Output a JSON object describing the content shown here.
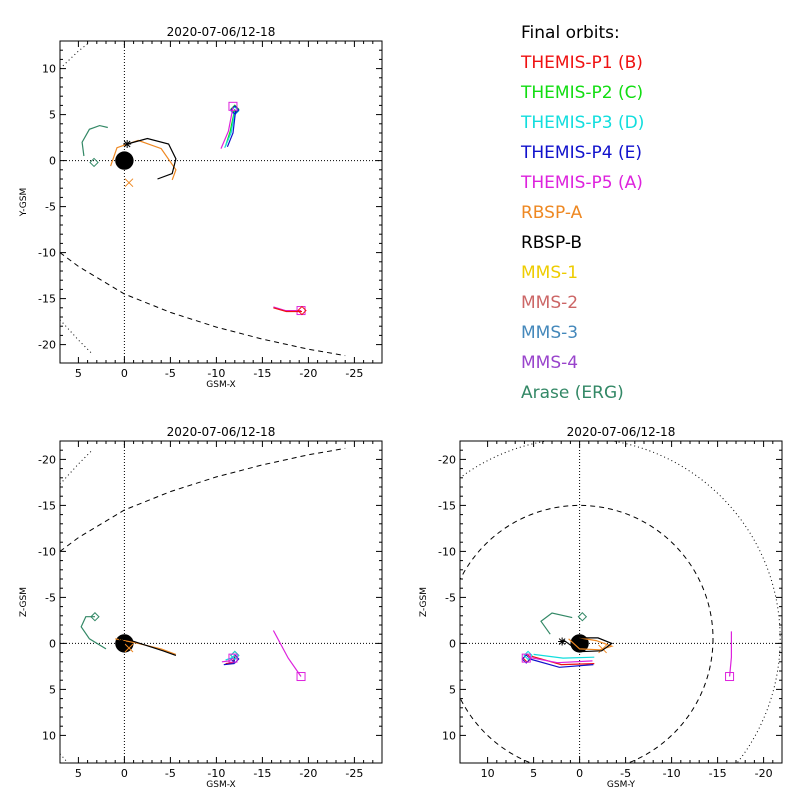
{
  "legend": {
    "title": "Final orbits:",
    "items": [
      {
        "label": "THEMIS-P1 (B)",
        "color": "#ee1111"
      },
      {
        "label": "THEMIS-P2 (C)",
        "color": "#11dd11"
      },
      {
        "label": "THEMIS-P3 (D)",
        "color": "#11dddd"
      },
      {
        "label": "THEMIS-P4 (E)",
        "color": "#1111cc"
      },
      {
        "label": "THEMIS-P5 (A)",
        "color": "#dd22dd"
      },
      {
        "label": "RBSP-A",
        "color": "#ee8822"
      },
      {
        "label": "RBSP-B",
        "color": "#000000"
      },
      {
        "label": "MMS-1",
        "color": "#eecc00"
      },
      {
        "label": "MMS-2",
        "color": "#cc6666"
      },
      {
        "label": "MMS-3",
        "color": "#4488bb"
      },
      {
        "label": "MMS-4",
        "color": "#9944cc"
      },
      {
        "label": "Arase (ERG)",
        "color": "#338866"
      }
    ]
  },
  "chart_data": [
    {
      "type": "line",
      "title": "2020-07-06/12-18",
      "xlabel": "GSM-X",
      "ylabel": "Y-GSM",
      "xlim": [
        7,
        -28
      ],
      "ylim": [
        13,
        -22
      ],
      "xticks": [
        5,
        0,
        -5,
        -10,
        -15,
        -20,
        -25
      ],
      "yticks": [
        -20,
        -15,
        -10,
        -5,
        0,
        5,
        10
      ],
      "series": [
        {
          "name": "THEMIS-P5 (A)",
          "points": [
            [
              -16.2,
              -15.9
            ],
            [
              -17.5,
              -16.3
            ],
            [
              -19.2,
              -16.3
            ]
          ],
          "marker": "square",
          "end": [
            -19.2,
            -16.3
          ]
        },
        {
          "name": "THEMIS-P1 (B)",
          "points": [
            [
              -16.2,
              -16.0
            ],
            [
              -17.6,
              -16.4
            ],
            [
              -19.3,
              -16.4
            ]
          ],
          "marker": "diamond",
          "end": [
            -19.3,
            -16.3
          ]
        },
        {
          "name": "THEMIS-P2 (C)",
          "points": [
            [
              -11.0,
              1.6
            ],
            [
              -11.5,
              3.2
            ],
            [
              -12.0,
              5.6
            ]
          ],
          "marker": "diamond",
          "end": [
            -12.0,
            5.6
          ]
        },
        {
          "name": "THEMIS-P3 (D)",
          "points": [
            [
              -10.9,
              1.4
            ],
            [
              -11.6,
              3.0
            ],
            [
              -12.0,
              5.3
            ]
          ],
          "marker": "diamond",
          "end": [
            -12.0,
            5.4
          ]
        },
        {
          "name": "THEMIS-P4 (E)",
          "points": [
            [
              -11.2,
              1.5
            ],
            [
              -11.8,
              3.0
            ],
            [
              -12.1,
              5.5
            ]
          ],
          "marker": "diamond",
          "end": [
            -12.0,
            5.5
          ]
        },
        {
          "name": "THEMIS-P5 (A)",
          "points": [
            [
              -10.5,
              1.3
            ],
            [
              -11.3,
              3.2
            ],
            [
              -11.8,
              5.8
            ]
          ],
          "marker": "square",
          "end": [
            -11.8,
            5.9
          ]
        },
        {
          "name": "RBSP-A",
          "points": [
            [
              1.5,
              -0.6
            ],
            [
              0.8,
              1.4
            ],
            [
              -1.5,
              2.2
            ],
            [
              -4.0,
              1.3
            ],
            [
              -5.6,
              -1.0
            ],
            [
              -5.2,
              -2.1
            ]
          ],
          "marker": "x",
          "end": [
            -0.5,
            -2.4
          ]
        },
        {
          "name": "RBSP-B",
          "points": [
            [
              -0.3,
              1.8
            ],
            [
              -2.5,
              2.4
            ],
            [
              -4.8,
              1.8
            ],
            [
              -5.6,
              0.2
            ],
            [
              -5.2,
              -1.4
            ],
            [
              -3.6,
              -2.0
            ]
          ],
          "marker": "asterisk",
          "end": [
            -0.3,
            1.8
          ]
        },
        {
          "name": "Arase (ERG)",
          "points": [
            [
              4.4,
              0.5
            ],
            [
              4.6,
              2.0
            ],
            [
              3.8,
              3.4
            ],
            [
              2.7,
              3.8
            ],
            [
              1.8,
              3.6
            ]
          ],
          "marker": "diamond",
          "end": [
            3.3,
            -0.2
          ]
        }
      ],
      "boundaries": [
        {
          "style": "dashed",
          "points": [
            [
              7,
              -10.0
            ],
            [
              5,
              -11.5
            ],
            [
              0,
              -14.5
            ],
            [
              -5,
              -16.5
            ],
            [
              -10,
              -18.1
            ],
            [
              -15,
              -19.4
            ],
            [
              -20,
              -20.5
            ],
            [
              -24,
              -21.2
            ]
          ]
        },
        {
          "style": "dotted",
          "points": [
            [
              7,
              -17.3
            ],
            [
              5,
              -19.5
            ],
            [
              3.5,
              -21.0
            ]
          ]
        },
        {
          "style": "dotted",
          "points": [
            [
              7,
              10.0
            ],
            [
              5,
              11.9
            ],
            [
              4,
              12.7
            ]
          ]
        }
      ]
    },
    {
      "type": "line",
      "title": "2020-07-06/12-18",
      "xlabel": "GSM-X",
      "ylabel": "Z-GSM",
      "xlim": [
        7,
        -28
      ],
      "ylim": [
        -22,
        13
      ],
      "xticks": [
        5,
        0,
        -5,
        -10,
        -15,
        -20,
        -25
      ],
      "yticks": [
        10,
        5,
        0,
        -5,
        -10,
        -15,
        -20
      ],
      "series": [
        {
          "name": "THEMIS-P5 (A)",
          "points": [
            [
              -16.2,
              -1.4
            ],
            [
              -17.8,
              1.6
            ],
            [
              -19.2,
              3.6
            ]
          ],
          "marker": "square",
          "end": [
            -19.2,
            3.6
          ]
        },
        {
          "name": "THEMIS-P1 (B)",
          "points": [
            [
              -11.0,
              2.2
            ],
            [
              -11.8,
              2.1
            ],
            [
              -12.0,
              1.4
            ]
          ],
          "marker": "diamond",
          "end": [
            -12.0,
            1.3
          ]
        },
        {
          "name": "THEMIS-P4 (E)",
          "points": [
            [
              -10.8,
              2.3
            ],
            [
              -11.9,
              2.2
            ],
            [
              -12.0,
              1.5
            ]
          ],
          "marker": "diamond",
          "end": [
            -12.0,
            1.7
          ]
        },
        {
          "name": "THEMIS-P3 (D)",
          "points": [
            [
              -11.0,
              1.8
            ],
            [
              -11.6,
              1.6
            ],
            [
              -12.0,
              1.3
            ]
          ],
          "marker": "diamond",
          "end": [
            -12.0,
            1.3
          ]
        },
        {
          "name": "THEMIS-P5 (A)",
          "points": [
            [
              -10.6,
              2.0
            ],
            [
              -11.4,
              1.9
            ],
            [
              -11.8,
              1.6
            ]
          ],
          "marker": "square",
          "end": [
            -11.8,
            1.6
          ]
        },
        {
          "name": "RBSP-A",
          "points": [
            [
              1.0,
              -0.5
            ],
            [
              -1.5,
              0.0
            ],
            [
              -4.0,
              0.6
            ],
            [
              -5.6,
              1.2
            ]
          ],
          "marker": "x",
          "end": [
            -0.5,
            0.5
          ]
        },
        {
          "name": "RBSP-B",
          "points": [
            [
              0.2,
              -0.6
            ],
            [
              -2.0,
              0.1
            ],
            [
              -4.2,
              0.8
            ],
            [
              -5.6,
              1.3
            ]
          ],
          "marker": "asterisk",
          "end": [
            0.3,
            -0.2
          ]
        },
        {
          "name": "Arase (ERG)",
          "points": [
            [
              2.0,
              0.6
            ],
            [
              3.8,
              -0.5
            ],
            [
              4.7,
              -1.8
            ],
            [
              4.2,
              -2.9
            ],
            [
              3.2,
              -2.9
            ]
          ],
          "marker": "diamond",
          "end": [
            3.2,
            -2.9
          ]
        }
      ],
      "boundaries": [
        {
          "style": "dashed",
          "points": [
            [
              7,
              -10.0
            ],
            [
              5,
              -11.5
            ],
            [
              0,
              -14.5
            ],
            [
              -5,
              -16.5
            ],
            [
              -10,
              -18.1
            ],
            [
              -15,
              -19.4
            ],
            [
              -20,
              -20.5
            ],
            [
              -24,
              -21.2
            ]
          ]
        },
        {
          "style": "dotted",
          "points": [
            [
              7,
              -17.3
            ],
            [
              5,
              -19.5
            ],
            [
              3.5,
              -21.0
            ]
          ]
        },
        {
          "style": "dotted",
          "points": [
            [
              7,
              12.0
            ],
            [
              6.3,
              12.8
            ]
          ]
        }
      ]
    },
    {
      "type": "line",
      "title": "2020-07-06/12-18",
      "xlabel": "GSM-Y",
      "ylabel": "Z-GSM",
      "xlim": [
        13,
        -22
      ],
      "ylim": [
        -22,
        13
      ],
      "xticks": [
        10,
        5,
        0,
        -5,
        -10,
        -15,
        -20
      ],
      "yticks": [
        10,
        5,
        0,
        -5,
        -10,
        -15,
        -20
      ],
      "series": [
        {
          "name": "THEMIS-P5 (A)",
          "points": [
            [
              -16.5,
              -1.3
            ],
            [
              -16.5,
              1.5
            ],
            [
              -16.3,
              3.6
            ]
          ],
          "marker": "square",
          "end": [
            -16.3,
            3.6
          ]
        },
        {
          "name": "THEMIS-P1 (B)",
          "points": [
            [
              -1.6,
              2.2
            ],
            [
              2.0,
              2.3
            ],
            [
              5.2,
              1.4
            ]
          ],
          "marker": "diamond",
          "end": [
            5.7,
            1.6
          ]
        },
        {
          "name": "THEMIS-P4 (E)",
          "points": [
            [
              -1.5,
              2.3
            ],
            [
              2.2,
              2.6
            ],
            [
              5.4,
              1.7
            ]
          ],
          "marker": "diamond",
          "end": [
            5.8,
            1.7
          ]
        },
        {
          "name": "THEMIS-P3 (D)",
          "points": [
            [
              -1.6,
              1.5
            ],
            [
              1.8,
              1.6
            ],
            [
              5.0,
              1.2
            ]
          ],
          "marker": "diamond",
          "end": [
            5.6,
            1.3
          ]
        },
        {
          "name": "THEMIS-P5 (A)",
          "points": [
            [
              -1.4,
              1.9
            ],
            [
              2.4,
              2.1
            ],
            [
              5.6,
              1.5
            ]
          ],
          "marker": "square",
          "end": [
            5.8,
            1.6
          ]
        },
        {
          "name": "RBSP-A",
          "points": [
            [
              1.2,
              -0.5
            ],
            [
              0.0,
              0.6
            ],
            [
              -2.2,
              0.7
            ],
            [
              -3.5,
              0.3
            ],
            [
              -1.8,
              -0.3
            ],
            [
              0.0,
              -0.6
            ]
          ],
          "marker": "x",
          "end": [
            -2.5,
            0.6
          ]
        },
        {
          "name": "RBSP-B",
          "points": [
            [
              1.8,
              -0.4
            ],
            [
              0.0,
              0.9
            ],
            [
              -2.4,
              0.8
            ],
            [
              -3.5,
              0.0
            ],
            [
              -2.0,
              -0.6
            ],
            [
              0.0,
              -0.6
            ]
          ],
          "marker": "asterisk",
          "end": [
            1.9,
            -0.2
          ]
        },
        {
          "name": "Arase (ERG)",
          "points": [
            [
              3.2,
              -1.0
            ],
            [
              4.2,
              -2.4
            ],
            [
              3.0,
              -3.3
            ],
            [
              0.8,
              -2.8
            ]
          ],
          "marker": "diamond",
          "end": [
            -0.3,
            -2.9
          ]
        }
      ],
      "boundaries": [
        {
          "style": "dashed",
          "shape": "circle",
          "center": [
            0,
            -0.5
          ],
          "radius": 14.5
        },
        {
          "style": "dotted",
          "shape": "circle",
          "center": [
            0,
            -0.5
          ],
          "radius": 21.8
        }
      ]
    }
  ]
}
